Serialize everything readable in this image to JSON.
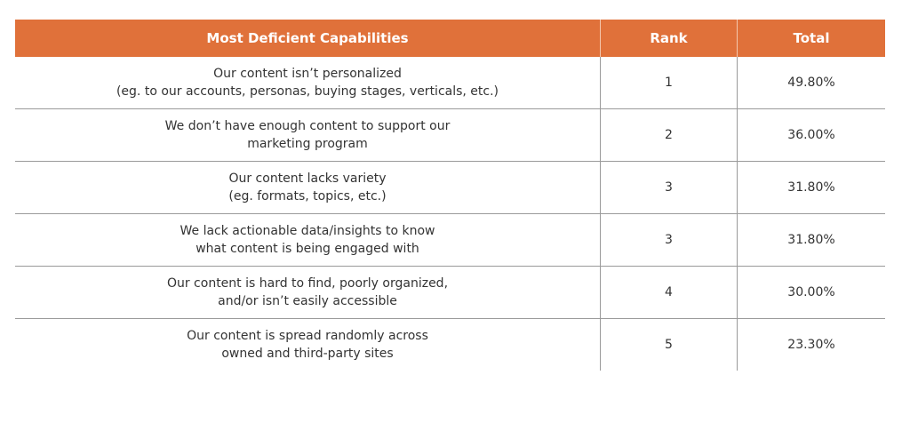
{
  "table": {
    "header": [
      "Most Deficient Capabilities",
      "Rank",
      "Total"
    ],
    "rows": [
      [
        [
          "Our content isn’t personalized",
          "(eg. to our accounts, personas, buying stages, verticals, etc.)"
        ],
        "1",
        "49.80%"
      ],
      [
        [
          "We don’t have enough content to support our",
          "marketing program"
        ],
        "2",
        "36.00%"
      ],
      [
        [
          "Our content lacks variety",
          "(eg. formats, topics, etc.)"
        ],
        "3",
        "31.80%"
      ],
      [
        [
          "We lack actionable data/insights to know",
          "what content is being engaged with"
        ],
        "3",
        "31.80%"
      ],
      [
        [
          "Our content is hard to find, poorly organized,",
          "and/or isn’t easily accessible"
        ],
        "4",
        "30.00%"
      ],
      [
        [
          "Our content is spread randomly across",
          "owned and third-party sites"
        ],
        "5",
        "23.30%"
      ]
    ]
  }
}
